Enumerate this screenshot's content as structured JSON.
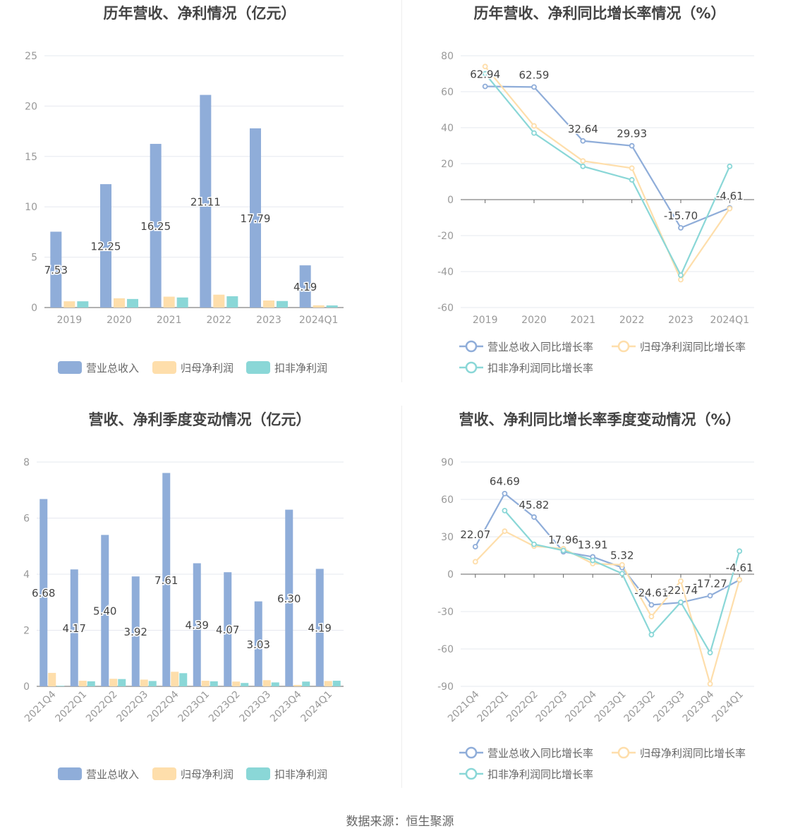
{
  "footer": {
    "source": "数据来源：恒生聚源"
  },
  "colors": {
    "revenue": "#8fadd9",
    "net_profit": "#fedeab",
    "deducted_profit": "#8ad7d7",
    "line_revenue": "#8fadd9",
    "line_net": "#fedeab",
    "line_deducted": "#8ad7d7"
  },
  "chart_data": [
    {
      "id": "annual-amount",
      "type": "bar",
      "title": "历年营收、净利情况（亿元）",
      "categories": [
        "2019",
        "2020",
        "2021",
        "2022",
        "2023",
        "2024Q1"
      ],
      "ylim": [
        0,
        25
      ],
      "yticks": [
        0,
        5,
        10,
        15,
        20,
        25
      ],
      "series": [
        {
          "name": "营业总收入",
          "values": [
            7.53,
            12.25,
            16.25,
            21.11,
            17.79,
            4.19
          ],
          "labels": [
            "7.53",
            "12.25",
            "16.25",
            "21.11",
            "17.79",
            "4.19"
          ]
        },
        {
          "name": "归母净利润",
          "values": [
            0.62,
            0.92,
            1.08,
            1.28,
            0.7,
            0.22
          ]
        },
        {
          "name": "扣非净利润",
          "values": [
            0.62,
            0.85,
            1.0,
            1.12,
            0.65,
            0.21
          ]
        }
      ],
      "grid": true,
      "legend": "bottom"
    },
    {
      "id": "annual-growth",
      "type": "line",
      "title": "历年营收、净利同比增长率情况（%）",
      "categories": [
        "2019",
        "2020",
        "2021",
        "2022",
        "2023",
        "2024Q1"
      ],
      "ylim": [
        -60,
        80
      ],
      "yticks": [
        -60,
        -40,
        -20,
        0,
        20,
        40,
        60,
        80
      ],
      "series": [
        {
          "name": "营业总收入同比增长率",
          "values": [
            62.94,
            62.59,
            32.64,
            29.93,
            -15.7,
            -4.61
          ],
          "labels": [
            "62.94",
            "62.59",
            "32.64",
            "29.93",
            "-15.70",
            "-4.61"
          ]
        },
        {
          "name": "归母净利润同比增长率",
          "values": [
            74,
            41,
            21.5,
            17.5,
            -44.5,
            -5
          ]
        },
        {
          "name": "扣非净利润同比增长率",
          "values": [
            70,
            37,
            18.5,
            11,
            -42,
            18.5
          ]
        }
      ],
      "grid": true,
      "legend": "bottom"
    },
    {
      "id": "quarterly-amount",
      "type": "bar",
      "title": "营收、净利季度变动情况（亿元）",
      "categories": [
        "2021Q4",
        "2022Q1",
        "2022Q2",
        "2022Q3",
        "2022Q4",
        "2023Q1",
        "2023Q2",
        "2023Q3",
        "2023Q4",
        "2024Q1"
      ],
      "ylim": [
        0,
        8
      ],
      "yticks": [
        0,
        2,
        4,
        6,
        8
      ],
      "series": [
        {
          "name": "营业总收入",
          "values": [
            6.68,
            4.17,
            5.4,
            3.92,
            7.61,
            4.39,
            4.07,
            3.03,
            6.3,
            4.19
          ],
          "labels": [
            "6.68",
            "4.17",
            "5.40",
            "3.92",
            "7.61",
            "4.39",
            "4.07",
            "3.03",
            "6.30",
            "4.19"
          ]
        },
        {
          "name": "归母净利润",
          "values": [
            0.48,
            0.2,
            0.27,
            0.24,
            0.52,
            0.2,
            0.17,
            0.22,
            0.05,
            0.19
          ]
        },
        {
          "name": "扣非净利润",
          "values": [
            0.02,
            0.18,
            0.26,
            0.19,
            0.47,
            0.18,
            0.12,
            0.14,
            0.17,
            0.2
          ]
        }
      ],
      "grid": true,
      "legend": "bottom"
    },
    {
      "id": "quarterly-growth",
      "type": "line",
      "title": "营收、净利同比增长率季度变动情况（%）",
      "categories": [
        "2021Q4",
        "2022Q1",
        "2022Q2",
        "2022Q3",
        "2022Q4",
        "2023Q1",
        "2023Q2",
        "2023Q3",
        "2023Q4",
        "2024Q1"
      ],
      "ylim": [
        -90,
        90
      ],
      "yticks": [
        -90,
        -60,
        -30,
        0,
        30,
        60,
        90
      ],
      "series": [
        {
          "name": "营业总收入同比增长率",
          "values": [
            22.07,
            64.69,
            45.82,
            17.96,
            13.91,
            5.32,
            -24.61,
            -22.74,
            -17.27,
            -4.61
          ],
          "labels": [
            "22.07",
            "64.69",
            "45.82",
            "17.96",
            "13.91",
            "5.32",
            "-24.61",
            "-22.74",
            "-17.27",
            "-4.61"
          ]
        },
        {
          "name": "归母净利润同比增长率",
          "values": [
            10,
            34.5,
            22.5,
            20.5,
            8.5,
            7.5,
            -34,
            -5.5,
            -88,
            -4.5
          ]
        },
        {
          "name": "扣非净利润同比增长率",
          "values": [
            null,
            51,
            24,
            19,
            11,
            0.5,
            -48.5,
            -22.5,
            -63,
            18.5
          ]
        }
      ],
      "grid": true,
      "legend": "bottom"
    }
  ]
}
